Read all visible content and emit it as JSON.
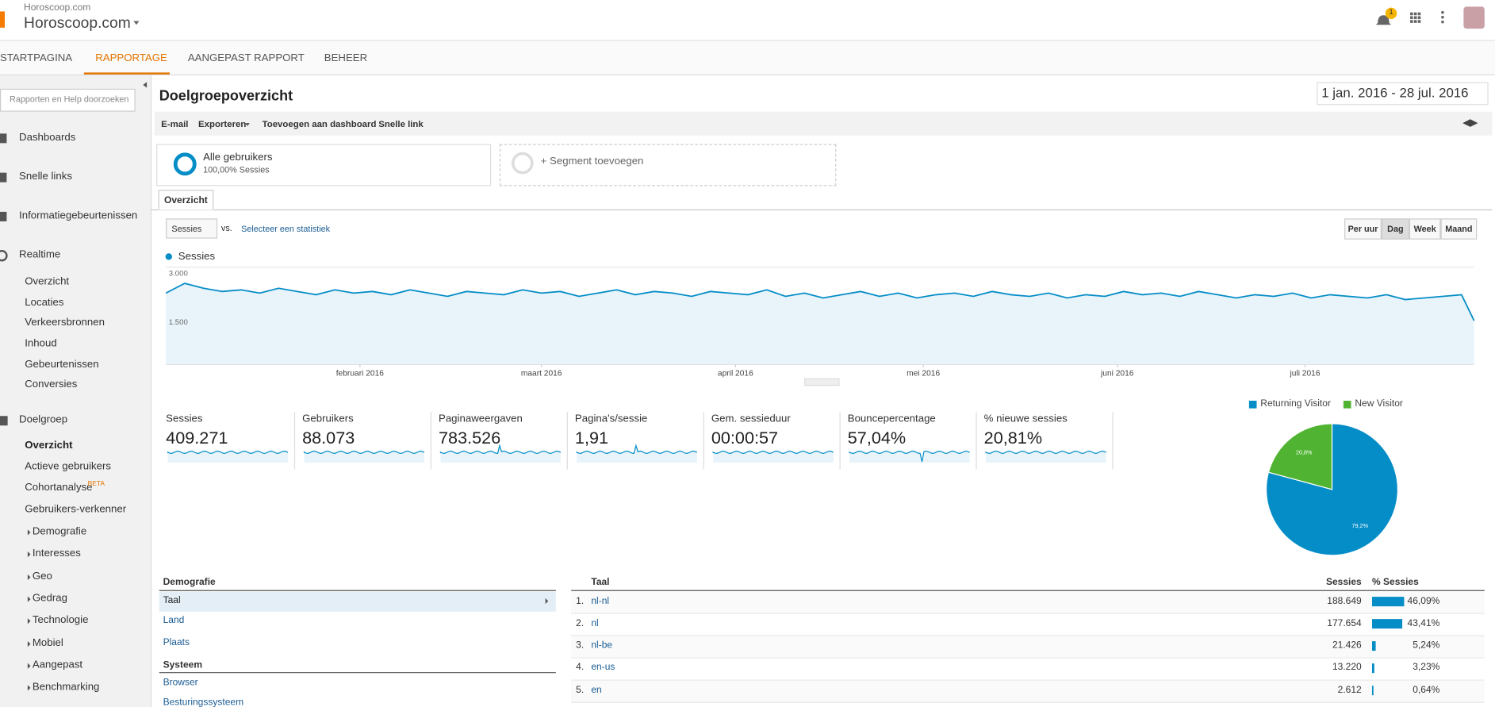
{
  "header": {
    "site_small": "Horoscoop.com",
    "site": "Horoscoop.com",
    "notification_count": "1"
  },
  "nav": [
    "STARTPAGINA",
    "RAPPORTAGE",
    "AANGEPAST RAPPORT",
    "BEHEER"
  ],
  "sidebar": {
    "search": "Rapporten en Help doorzoeken",
    "items": [
      "Dashboards",
      "Snelle links",
      "Informatiegebeurtenissen"
    ],
    "realtime": {
      "title": "Realtime",
      "items": [
        "Overzicht",
        "Locaties",
        "Verkeersbronnen",
        "Inhoud",
        "Gebeurtenissen",
        "Conversies"
      ]
    },
    "audience": {
      "title": "Doelgroep",
      "items": [
        "Overzicht",
        "Actieve gebruikers",
        "Cohortanalyse",
        "Gebruikers-verkenner"
      ],
      "beta": "BETA",
      "sections": [
        "Demografie",
        "Interesses",
        "Geo",
        "Gedrag",
        "Technologie",
        "Mobiel",
        "Aangepast",
        "Benchmarking"
      ]
    }
  },
  "report": {
    "title": "Doelgroepoverzicht",
    "date_range": "1 jan. 2016 - 28 jul. 2016",
    "toolbar": [
      "E-mail",
      "Exporteren",
      "Toevoegen aan dashboard",
      "Snelle link"
    ],
    "segment": {
      "name": "Alle gebruikers",
      "sub": "100,00% Sessies"
    },
    "add_segment": "+ Segment toevoegen",
    "tab": "Overzicht",
    "metric_select": "Sessies",
    "vs": "vs.",
    "select_stat": "Selecteer een statistiek",
    "granularity": [
      "Per uur",
      "Dag",
      "Week",
      "Maand"
    ]
  },
  "chart_data": [
    {
      "type": "line",
      "x": [
        0,
        3,
        6,
        9,
        12,
        15,
        18,
        21,
        24,
        27,
        30,
        33,
        36,
        39,
        42,
        45,
        48,
        51,
        54,
        57,
        60,
        63,
        66,
        69,
        72,
        75,
        78,
        81,
        84,
        87,
        90,
        93,
        96,
        99,
        102,
        105,
        108,
        111,
        114,
        117,
        120,
        123,
        126,
        129,
        132,
        135,
        138,
        141,
        144,
        147,
        150,
        153,
        156,
        159,
        162,
        165,
        168,
        171,
        174,
        177,
        180,
        183,
        186,
        189,
        192,
        195,
        198,
        201,
        204,
        207,
        209
      ],
      "series": [
        {
          "name": "Sessies",
          "color": "#058dc7",
          "values": [
            2200,
            2500,
            2350,
            2250,
            2300,
            2200,
            2350,
            2250,
            2150,
            2300,
            2200,
            2250,
            2150,
            2300,
            2200,
            2100,
            2250,
            2200,
            2150,
            2300,
            2200,
            2250,
            2100,
            2200,
            2300,
            2150,
            2250,
            2200,
            2100,
            2250,
            2200,
            2150,
            2300,
            2100,
            2200,
            2050,
            2150,
            2250,
            2100,
            2200,
            2050,
            2150,
            2200,
            2100,
            2250,
            2150,
            2100,
            2200,
            2050,
            2150,
            2100,
            2250,
            2150,
            2200,
            2100,
            2250,
            2150,
            2050,
            2150,
            2100,
            2200,
            2050,
            2150,
            2100,
            2050,
            2150,
            2000,
            2050,
            2100,
            2150,
            1350
          ]
        }
      ],
      "xlim": [
        0,
        209
      ],
      "xticks": [
        {
          "value": 31,
          "label": "februari 2016"
        },
        {
          "value": 60,
          "label": "maart 2016"
        },
        {
          "value": 91,
          "label": "april 2016"
        },
        {
          "value": 121,
          "label": "mei 2016"
        },
        {
          "value": 152,
          "label": "juni 2016"
        },
        {
          "value": 182,
          "label": "juli 2016"
        }
      ],
      "ylim": [
        0,
        3000
      ],
      "yticks": [
        {
          "value": 1500,
          "label": "1.500"
        },
        {
          "value": 3000,
          "label": "3.000"
        }
      ],
      "grid": true
    },
    {
      "type": "pie",
      "categories": [
        "Returning Visitor",
        "New Visitor"
      ],
      "values": [
        79.2,
        20.8
      ],
      "value_labels": [
        "79,2%",
        "20,8%"
      ],
      "colors": [
        "#058dc7",
        "#50b432"
      ]
    }
  ],
  "metrics": [
    {
      "label": "Sessies",
      "value": "409.271"
    },
    {
      "label": "Gebruikers",
      "value": "88.073"
    },
    {
      "label": "Paginaweergaven",
      "value": "783.526"
    },
    {
      "label": "Pagina's/sessie",
      "value": "1,91"
    },
    {
      "label": "Gem. sessieduur",
      "value": "00:00:57"
    },
    {
      "label": "Bouncepercentage",
      "value": "57,04%"
    },
    {
      "label": "% nieuwe sessies",
      "value": "20,81%"
    }
  ],
  "demographics": {
    "title": "Demografie",
    "items": [
      "Taal",
      "Land",
      "Plaats"
    ],
    "system_title": "Systeem",
    "system_items": [
      "Browser",
      "Besturingssysteem"
    ]
  },
  "table": {
    "headers": [
      "Taal",
      "Sessies",
      "% Sessies"
    ],
    "rows": [
      {
        "rank": "1.",
        "label": "nl-nl",
        "sessions": "188.649",
        "share": 46.09,
        "share_label": "46,09%"
      },
      {
        "rank": "2.",
        "label": "nl",
        "sessions": "177.654",
        "share": 43.41,
        "share_label": "43,41%"
      },
      {
        "rank": "3.",
        "label": "nl-be",
        "sessions": "21.426",
        "share": 5.24,
        "share_label": "5,24%"
      },
      {
        "rank": "4.",
        "label": "en-us",
        "sessions": "13.220",
        "share": 3.23,
        "share_label": "3,23%"
      },
      {
        "rank": "5.",
        "label": "en",
        "sessions": "2.612",
        "share": 0.64,
        "share_label": "0,64%"
      }
    ]
  }
}
